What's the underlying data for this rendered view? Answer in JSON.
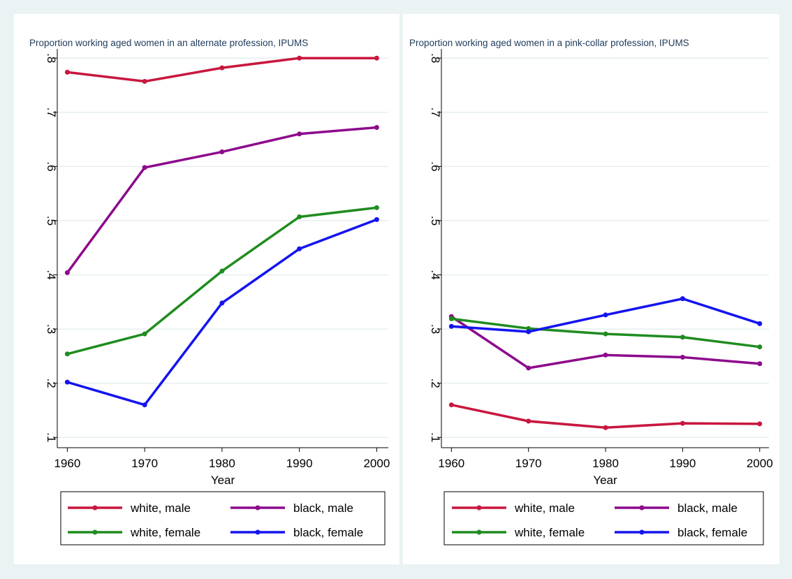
{
  "chart_data": [
    {
      "type": "line",
      "title": "Proportion working aged women in an alternate profession, IPUMS",
      "xlabel": "Year",
      "x": [
        1960,
        1970,
        1980,
        1990,
        2000
      ],
      "series": [
        {
          "name": "white, male",
          "color": "#c8173f",
          "values": [
            0.774,
            0.757,
            0.782,
            0.8,
            0.8
          ]
        },
        {
          "name": "black, male",
          "color": "#8c0a8c",
          "values": [
            0.404,
            0.598,
            0.627,
            0.66,
            0.672
          ]
        },
        {
          "name": "white, female",
          "color": "#1f8c1f",
          "values": [
            0.254,
            0.291,
            0.407,
            0.507,
            0.524
          ]
        },
        {
          "name": "black, female",
          "color": "#1414f0",
          "values": [
            0.202,
            0.16,
            0.348,
            0.448,
            0.502
          ]
        }
      ],
      "xlim": [
        1958.7,
        2001.5
      ],
      "ylim": [
        0.081,
        0.817
      ],
      "xticks": [
        1960,
        1970,
        1980,
        1990,
        2000
      ],
      "yticks": [
        {
          "value": 0.1,
          "label": ".1"
        },
        {
          "value": 0.2,
          "label": ".2"
        },
        {
          "value": 0.3,
          "label": ".3"
        },
        {
          "value": 0.4,
          "label": ".4"
        },
        {
          "value": 0.5,
          "label": ".5"
        },
        {
          "value": 0.6,
          "label": ".6"
        },
        {
          "value": 0.7,
          "label": ".7"
        },
        {
          "value": 0.8,
          "label": ".8"
        }
      ],
      "grid": true
    },
    {
      "type": "line",
      "title": "Proportion working aged women in a pink-collar profession, IPUMS",
      "xlabel": "Year",
      "x": [
        1960,
        1970,
        1980,
        1990,
        2000
      ],
      "series": [
        {
          "name": "white, male",
          "color": "#c8173f",
          "values": [
            0.16,
            0.13,
            0.118,
            0.126,
            0.125
          ]
        },
        {
          "name": "black, male",
          "color": "#8c0a8c",
          "values": [
            0.323,
            0.228,
            0.252,
            0.248,
            0.236
          ]
        },
        {
          "name": "white, female",
          "color": "#1f8c1f",
          "values": [
            0.319,
            0.301,
            0.291,
            0.285,
            0.267
          ]
        },
        {
          "name": "black, female",
          "color": "#1414f0",
          "values": [
            0.305,
            0.295,
            0.326,
            0.356,
            0.31
          ]
        }
      ],
      "xlim": [
        1958.7,
        2001.2
      ],
      "ylim": [
        0.081,
        0.817
      ],
      "xticks": [
        1960,
        1970,
        1980,
        1990,
        2000
      ],
      "yticks": [
        {
          "value": 0.1,
          "label": ".1"
        },
        {
          "value": 0.2,
          "label": ".2"
        },
        {
          "value": 0.3,
          "label": ".3"
        },
        {
          "value": 0.4,
          "label": ".4"
        },
        {
          "value": 0.5,
          "label": ".5"
        },
        {
          "value": 0.6,
          "label": ".6"
        },
        {
          "value": 0.7,
          "label": ".7"
        },
        {
          "value": 0.8,
          "label": ".8"
        }
      ],
      "grid": true
    }
  ]
}
